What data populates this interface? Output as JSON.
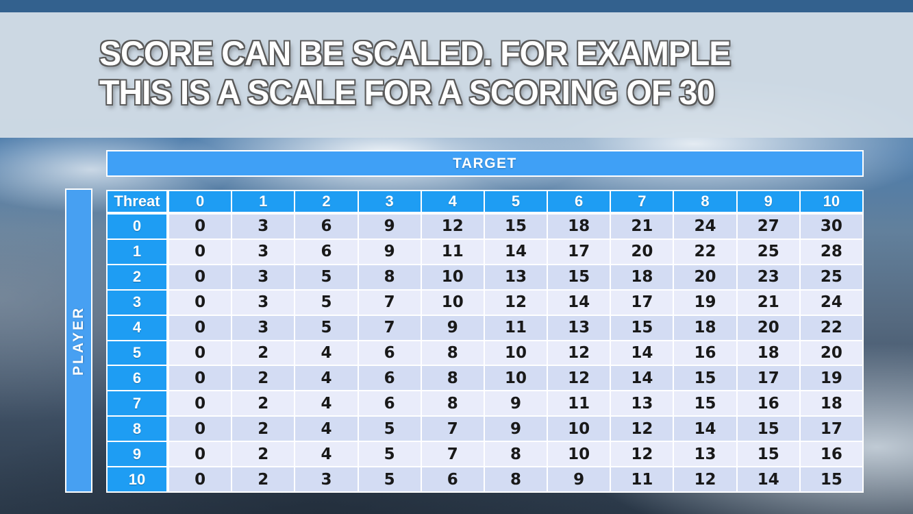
{
  "slide": {
    "title_line1": "SCORE CAN BE SCALED. FOR EXAMPLE",
    "title_line2": "THIS IS A SCALE FOR A SCORING OF 30"
  },
  "matrix": {
    "top_axis_label": "TARGET",
    "left_axis_label": "PLAYER",
    "corner_label": "Threat",
    "column_headers": [
      "0",
      "1",
      "2",
      "3",
      "4",
      "5",
      "6",
      "7",
      "8",
      "9",
      "10"
    ],
    "row_headers": [
      "0",
      "1",
      "2",
      "3",
      "4",
      "5",
      "6",
      "7",
      "8",
      "9",
      "10"
    ],
    "rows": [
      [
        0,
        3,
        6,
        9,
        12,
        15,
        18,
        21,
        24,
        27,
        30
      ],
      [
        0,
        3,
        6,
        9,
        11,
        14,
        17,
        20,
        22,
        25,
        28
      ],
      [
        0,
        3,
        5,
        8,
        10,
        13,
        15,
        18,
        20,
        23,
        25
      ],
      [
        0,
        3,
        5,
        7,
        10,
        12,
        14,
        17,
        19,
        21,
        24
      ],
      [
        0,
        3,
        5,
        7,
        9,
        11,
        13,
        15,
        18,
        20,
        22
      ],
      [
        0,
        2,
        4,
        6,
        8,
        10,
        12,
        14,
        16,
        18,
        20
      ],
      [
        0,
        2,
        4,
        6,
        8,
        10,
        12,
        14,
        15,
        17,
        19
      ],
      [
        0,
        2,
        4,
        6,
        8,
        9,
        11,
        13,
        15,
        16,
        18
      ],
      [
        0,
        2,
        4,
        5,
        7,
        9,
        10,
        12,
        14,
        15,
        17
      ],
      [
        0,
        2,
        4,
        5,
        7,
        8,
        10,
        12,
        13,
        15,
        16
      ],
      [
        0,
        2,
        3,
        5,
        6,
        8,
        9,
        11,
        12,
        14,
        15
      ]
    ]
  },
  "colors": {
    "header_blue": "#1e9df3",
    "target_bar_blue": "#3fa0f6",
    "player_bar_blue": "#47a0f2",
    "row_even": "#d3dcf3",
    "row_odd": "#e9ecfa",
    "top_strip": "#33618e",
    "cell_text": "#191919"
  }
}
